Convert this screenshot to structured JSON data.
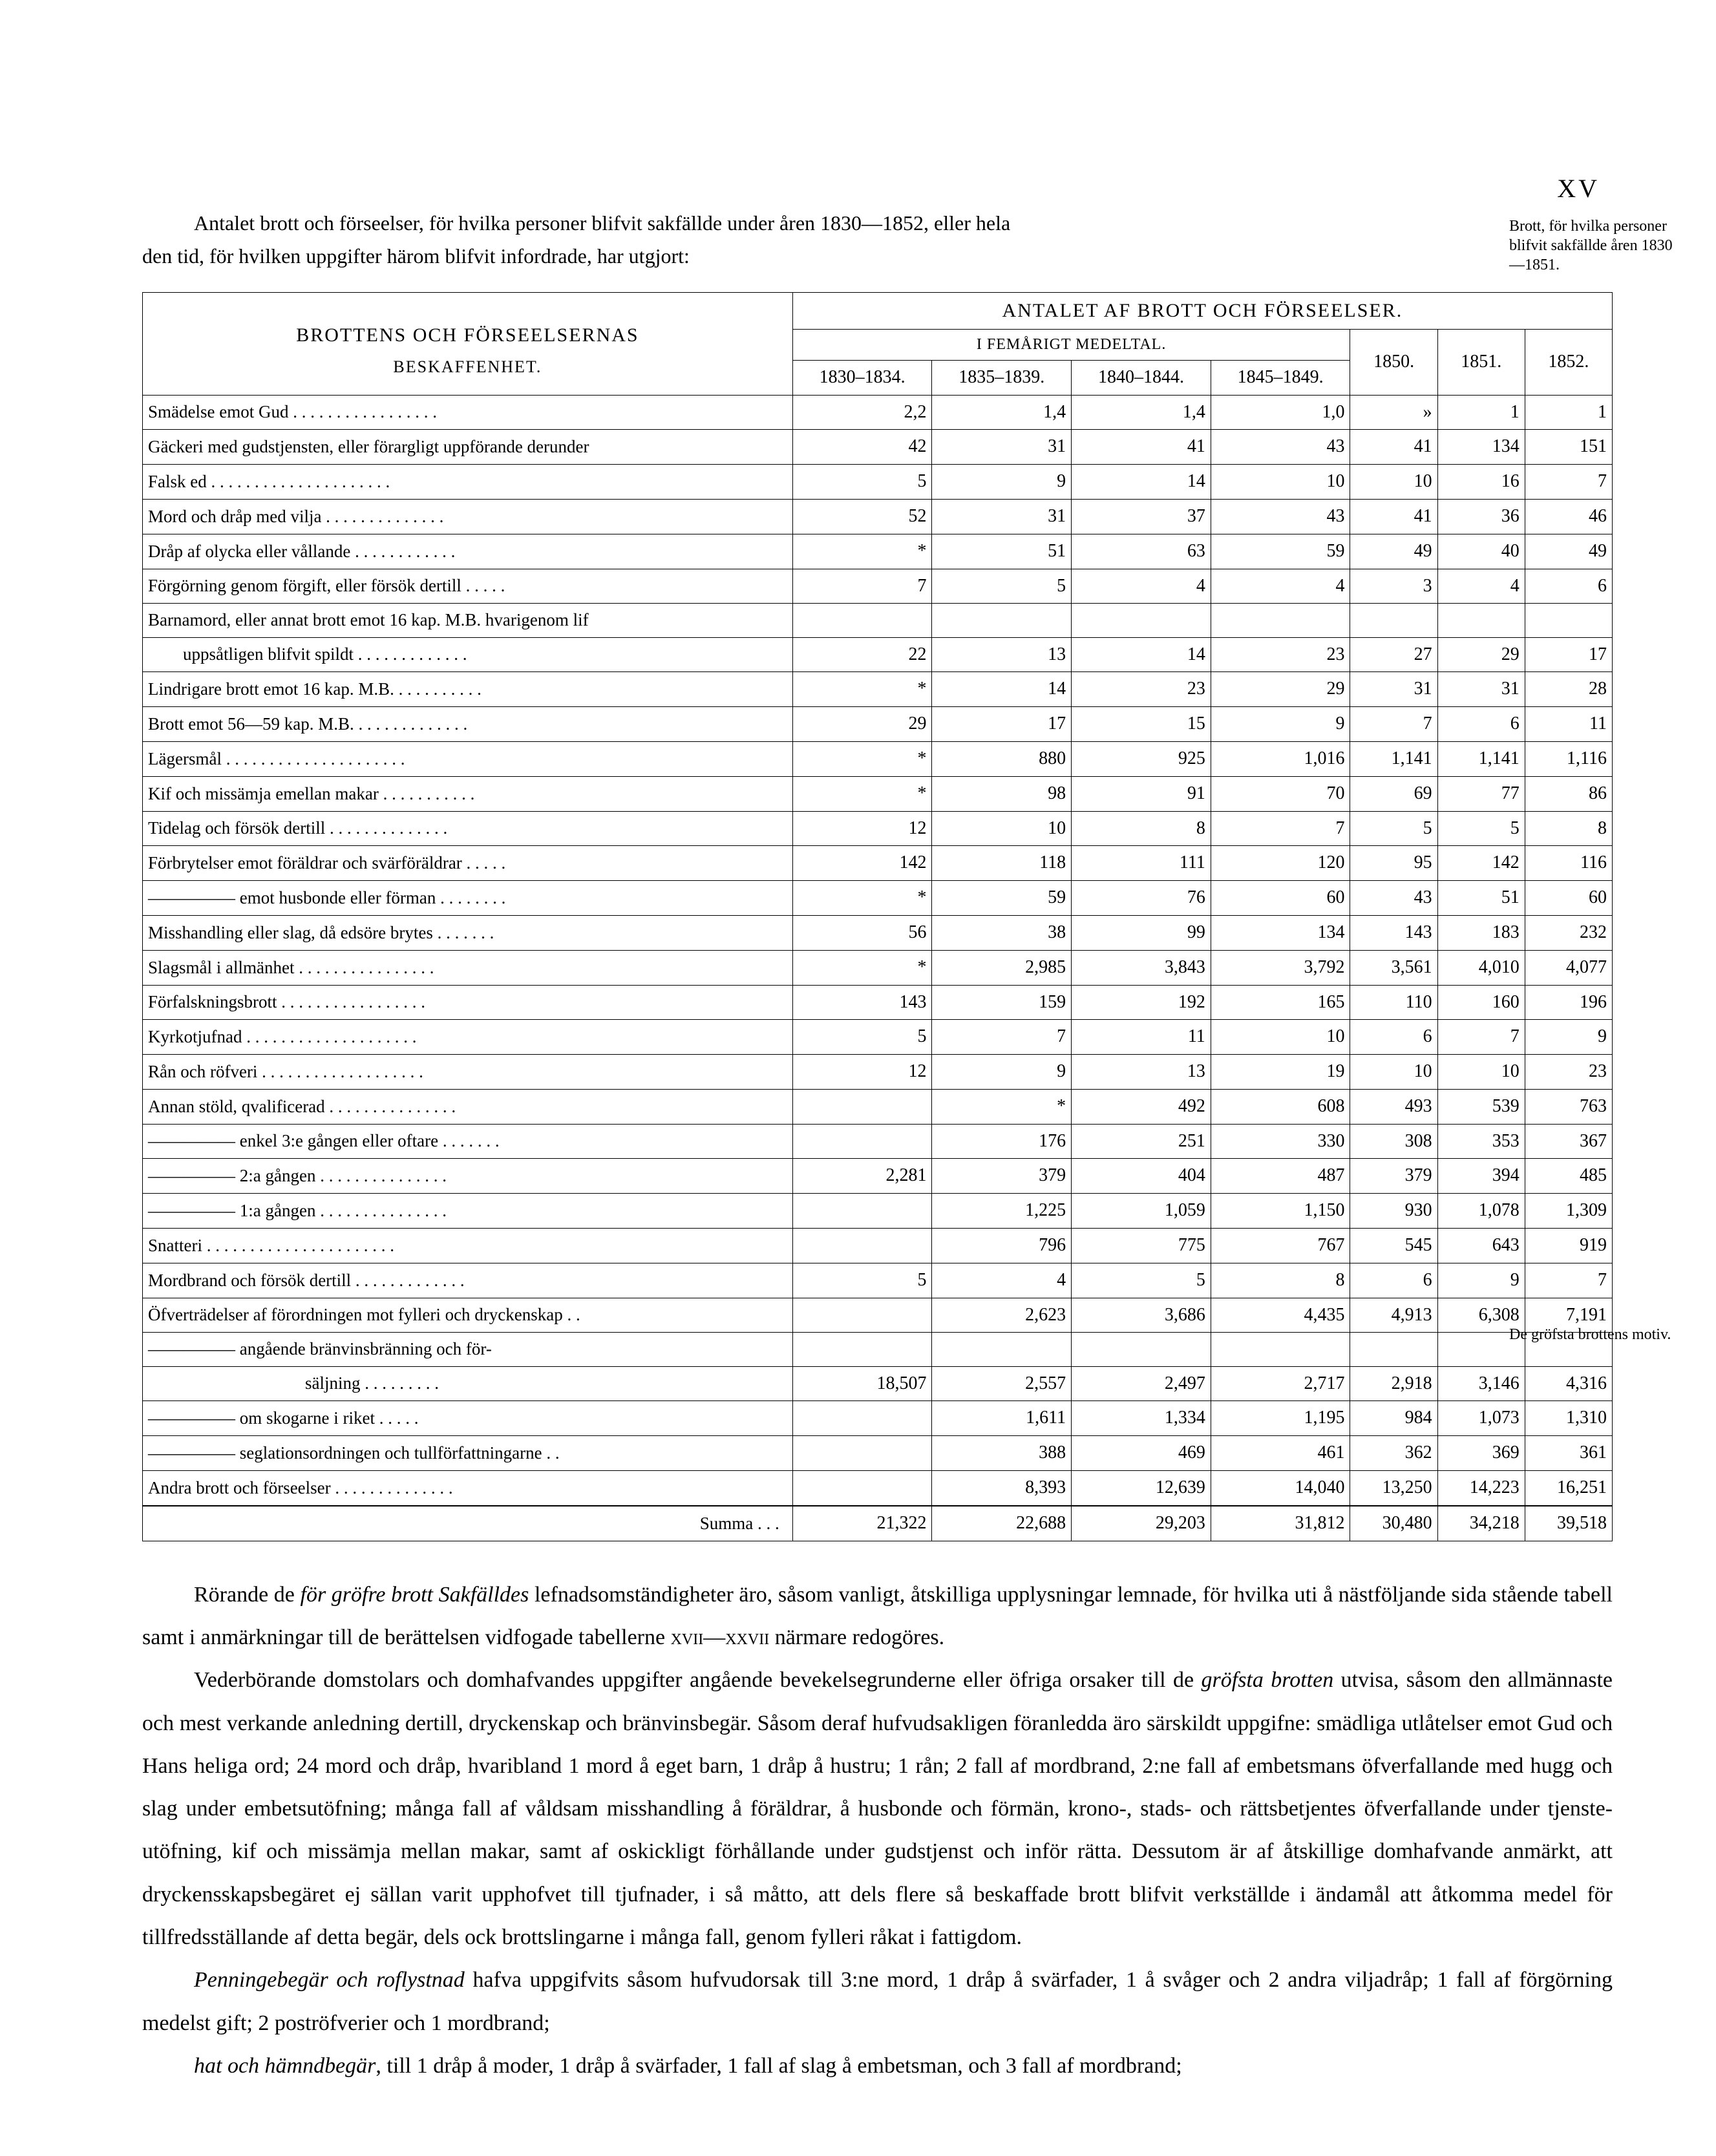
{
  "page_number": "XV",
  "intro_line1": "Antalet brott och förseelser, för hvilka personer blifvit sakfällde under åren 1830—1852, eller hela",
  "intro_line2": "den tid, för hvilken uppgifter härom blifvit infordrade, har utgjort:",
  "margin_note_1": "Brott, för hvilka perso­ner blifvit sakfällde åren 1830—1851.",
  "margin_note_2": "De gröfsta brottens motiv.",
  "table": {
    "desc_header_1": "BROTTENS OCH FÖRSEELSERNAS",
    "desc_header_2": "BESKAFFENHET.",
    "group_header": "ANTALET AF BROTT OCH FÖRSEELSER.",
    "sub_header": "I FEMÅRIGT MEDELTAL.",
    "cols": [
      "1830–1834.",
      "1835–1839.",
      "1840–1844.",
      "1845–1849.",
      "1850.",
      "1851.",
      "1852."
    ],
    "rows": [
      {
        "d": "Smädelse emot Gud . . . . . . . . . . . . . . . . .",
        "v": [
          "2,2",
          "1,4",
          "1,4",
          "1,0",
          "»",
          "1",
          "1"
        ]
      },
      {
        "d": "Gäckeri med gudstjensten, eller förargligt uppförande derunder",
        "v": [
          "42",
          "31",
          "41",
          "43",
          "41",
          "134",
          "151"
        ]
      },
      {
        "d": "Falsk ed . . . . . . . . . . . . . . . . . . . . .",
        "v": [
          "5",
          "9",
          "14",
          "10",
          "10",
          "16",
          "7"
        ]
      },
      {
        "d": "Mord och dråp med vilja . . . . . . . . . . . . . .",
        "v": [
          "52",
          "31",
          "37",
          "43",
          "41",
          "36",
          "46"
        ]
      },
      {
        "d": "Dråp af olycka eller vållande . . . . . . . . . . . .",
        "v": [
          "*",
          "51",
          "63",
          "59",
          "49",
          "40",
          "49"
        ]
      },
      {
        "d": "Förgörning genom förgift, eller försök dertill . . . . .",
        "v": [
          "7",
          "5",
          "4",
          "4",
          "3",
          "4",
          "6"
        ]
      },
      {
        "d": "Barnamord, eller annat brott emot 16 kap. M.B. hvarigenom lif",
        "v": [
          "",
          "",
          "",
          "",
          "",
          "",
          ""
        ]
      },
      {
        "d": "  uppsåtligen blifvit spildt . . . . . . . . . . . . .",
        "v": [
          "22",
          "13",
          "14",
          "23",
          "27",
          "29",
          "17"
        ]
      },
      {
        "d": "Lindrigare brott emot 16 kap. M.B. . . . . . . . . . .",
        "v": [
          "*",
          "14",
          "23",
          "29",
          "31",
          "31",
          "28"
        ]
      },
      {
        "d": "Brott emot 56—59 kap. M.B. . . . . . . . . . . . . .",
        "v": [
          "29",
          "17",
          "15",
          "9",
          "7",
          "6",
          "11"
        ]
      },
      {
        "d": "Lägersmål . . . . . . . . . . . . . . . . . . . . .",
        "v": [
          "*",
          "880",
          "925",
          "1,016",
          "1,141",
          "1,141",
          "1,116"
        ]
      },
      {
        "d": "Kif och missämja emellan makar . . . . . . . . . . .",
        "v": [
          "*",
          "98",
          "91",
          "70",
          "69",
          "77",
          "86"
        ]
      },
      {
        "d": "Tidelag och försök dertill . . . . . . . . . . . . . .",
        "v": [
          "12",
          "10",
          "8",
          "7",
          "5",
          "5",
          "8"
        ]
      },
      {
        "d": "Förbrytelser emot föräldrar och svärföräldrar . . . . .",
        "v": [
          "142",
          "118",
          "111",
          "120",
          "95",
          "142",
          "116"
        ]
      },
      {
        "d": "————— emot husbonde eller förman . . . . . . . .",
        "v": [
          "*",
          "59",
          "76",
          "60",
          "43",
          "51",
          "60"
        ]
      },
      {
        "d": "Misshandling eller slag, då edsöre brytes . . . . . . .",
        "v": [
          "56",
          "38",
          "99",
          "134",
          "143",
          "183",
          "232"
        ]
      },
      {
        "d": "Slagsmål i allmänhet . . . . . . . . . . . . . . . .",
        "v": [
          "*",
          "2,985",
          "3,843",
          "3,792",
          "3,561",
          "4,010",
          "4,077"
        ]
      },
      {
        "d": "Förfalskningsbrott . . . . . . . . . . . . . . . . .",
        "v": [
          "143",
          "159",
          "192",
          "165",
          "110",
          "160",
          "196"
        ]
      },
      {
        "d": "Kyrkotjufnad . . . . . . . . . . . . . . . . . . . .",
        "v": [
          "5",
          "7",
          "11",
          "10",
          "6",
          "7",
          "9"
        ]
      },
      {
        "d": "Rån och röfveri . . . . . . . . . . . . . . . . . . .",
        "v": [
          "12",
          "9",
          "13",
          "19",
          "10",
          "10",
          "23"
        ]
      },
      {
        "d": "Annan stöld, qvalificerad . . . . . . . . . . . . . . .",
        "v": [
          "",
          "*",
          "492",
          "608",
          "493",
          "539",
          "763"
        ]
      },
      {
        "d": "————— enkel 3:e gången eller oftare . . . . . . .",
        "v": [
          "",
          "176",
          "251",
          "330",
          "308",
          "353",
          "367"
        ]
      },
      {
        "d": "————— 2:a gången . . . . . . . . . . . . . . .",
        "v": [
          "2,281",
          "379",
          "404",
          "487",
          "379",
          "394",
          "485"
        ]
      },
      {
        "d": "————— 1:a gången . . . . . . . . . . . . . . .",
        "v": [
          "",
          "1,225",
          "1,059",
          "1,150",
          "930",
          "1,078",
          "1,309"
        ]
      },
      {
        "d": "Snatteri . . . . . . . . . . . . . . . . . . . . . .",
        "v": [
          "",
          "796",
          "775",
          "767",
          "545",
          "643",
          "919"
        ]
      },
      {
        "d": "Mordbrand och försök dertill . . . . . . . . . . . . .",
        "v": [
          "5",
          "4",
          "5",
          "8",
          "6",
          "9",
          "7"
        ]
      },
      {
        "d": "Öfverträdelser af förordningen mot fylleri och dryckenskap . .",
        "v": [
          "",
          "2,623",
          "3,686",
          "4,435",
          "4,913",
          "6,308",
          "7,191"
        ]
      },
      {
        "d": "————— angående bränvinsbränning och för-",
        "v": [
          "",
          "",
          "",
          "",
          "",
          "",
          ""
        ]
      },
      {
        "d": "         säljning . . . . . . . . .",
        "v": [
          "18,507",
          "2,557",
          "2,497",
          "2,717",
          "2,918",
          "3,146",
          "4,316"
        ]
      },
      {
        "d": "————— om skogarne i riket . . . . .",
        "v": [
          "",
          "1,611",
          "1,334",
          "1,195",
          "984",
          "1,073",
          "1,310"
        ]
      },
      {
        "d": "————— seglationsordningen och tullförfattningarne . .",
        "v": [
          "",
          "388",
          "469",
          "461",
          "362",
          "369",
          "361"
        ]
      },
      {
        "d": "Andra brott och förseelser . . . . . . . . . . . . . .",
        "v": [
          "",
          "8,393",
          "12,639",
          "14,040",
          "13,250",
          "14,223",
          "16,251"
        ]
      }
    ],
    "sum_label": "Summa . . .",
    "sum": [
      "21,322",
      "22,688",
      "29,203",
      "31,812",
      "30,480",
      "34,218",
      "39,518"
    ]
  },
  "para1": "Rörande de <i>för gröfre brott Sakfälldes</i> lefnadsomständigheter äro, såsom vanligt, åtskilliga upplysningar lemnade, för hvilka uti å nästföljande sida stående tabell samt i anmärkningar till de berättelsen vidfogade ta­bellerne <span class='sc'>xvii—xxvii</span> närmare redogöres.",
  "para2": "Vederbörande domstolars och domhafvandes uppgifter angående bevekelsegrunderne eller öfriga orsaker till de <i>gröfsta brotten</i> utvisa, såsom den allmännaste och mest verkande anledning dertill, dryckenskap och bränvinsbegär. Såsom deraf hufvudsakligen föranledda äro särskildt uppgifne: smädliga utlåtelser emot Gud och Hans heliga ord; 24 mord och dråp, hvaribland 1 mord å eget barn, 1 dråp å hustru; 1 rån; 2 fall af mord­brand, 2:ne fall af embetsmans öfverfallande med hugg och slag under embetsutöfning; många fall af våldsam misshandling å föräldrar, å husbonde och förmän, krono-, stads- och rättsbetjentes öfverfallande under tjenste­utöfning, kif och missämja mellan makar, samt af oskickligt förhållande under gudstjenst och inför rätta. Dess­utom är af åtskillige domhafvande anmärkt, att dryckensskapsbegäret ej sällan varit upphofvet till tjufnader, i så måtto, att dels flere så beskaffade brott blifvit verkställde i ändamål att åtkomma medel för tillfredsställande af detta begär, dels ock brottslingarne i många fall, genom fylleri råkat i fattigdom.",
  "para3": "<i>Penningebegär och roflystnad</i> hafva uppgifvits såsom hufvudorsak till 3:ne mord, 1 dråp å svärfader, 1 å svåger och 2 andra viljadråp; 1 fall af förgörning medelst gift; 2 poströfverier och 1 mordbrand;",
  "para4": "<i>hat och hämndbegär</i>, till 1 dråp å moder, 1 dråp å svärfader, 1 fall af slag å embetsman, och 3 fall af mordbrand;"
}
